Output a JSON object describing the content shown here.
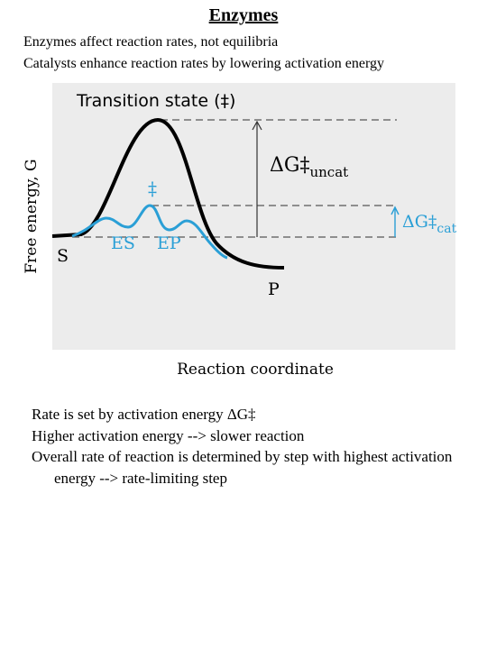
{
  "header": {
    "title": "Enzymes"
  },
  "intro": [
    "Enzymes affect reaction rates, not equilibria",
    "Catalysts enhance reaction rates by lowering activation energy"
  ],
  "diagram": {
    "title": "Transition state (‡)",
    "y_label": "Free energy, G",
    "x_label": "Reaction coordinate",
    "uncat_symbol": "ΔG‡",
    "uncat_sub": "uncat",
    "cat_symbol": "ΔG‡",
    "cat_sub": "cat",
    "cat_ts": "‡",
    "es": "ES",
    "ep": "EP",
    "substrate": "S",
    "product": "P"
  },
  "bullets": [
    "Rate is set by activation energy ΔG‡",
    "Higher activation energy --> slower reaction",
    "Overall rate of reaction is determined by step with highest activation energy --> rate-limiting step"
  ]
}
